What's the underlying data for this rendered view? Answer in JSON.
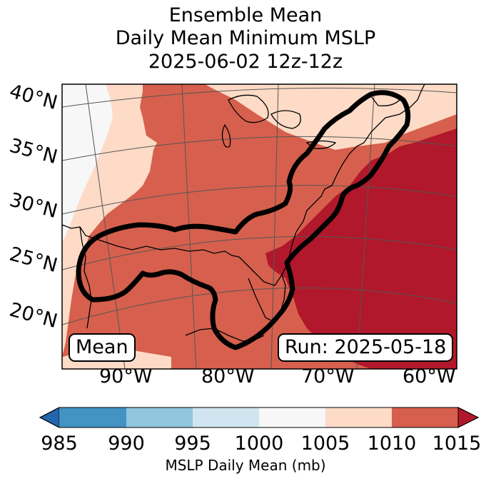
{
  "title": {
    "line1": "Ensemble Mean",
    "line2": "Daily Mean Minimum MSLP",
    "line3": "2025-06-02 12z-12z"
  },
  "lat_labels": [
    "40°N",
    "35°N",
    "30°N",
    "25°N",
    "20°N"
  ],
  "lon_labels": [
    "90°W",
    "80°W",
    "70°W",
    "60°W"
  ],
  "mean_label": "Mean",
  "run_label": "Run: 2025-05-18",
  "colorbar": {
    "ticks": [
      "985",
      "990",
      "995",
      "1000",
      "1005",
      "1010",
      "1015"
    ],
    "label": "MSLP Daily Mean (mb)",
    "colors": [
      "#2166ac",
      "#4393c3",
      "#92c5de",
      "#d1e5f0",
      "#f7f7f7",
      "#fddbc7",
      "#d6604d",
      "#b2182b"
    ]
  },
  "colors": {
    "field_1000_1005": "#f7f7f7",
    "field_1005_1010": "#fddbc7",
    "field_1010_1015": "#d6604d",
    "field_over_1015": "#b2182b",
    "contour": "#000000",
    "coast": "#000000",
    "grid": "#555555"
  }
}
